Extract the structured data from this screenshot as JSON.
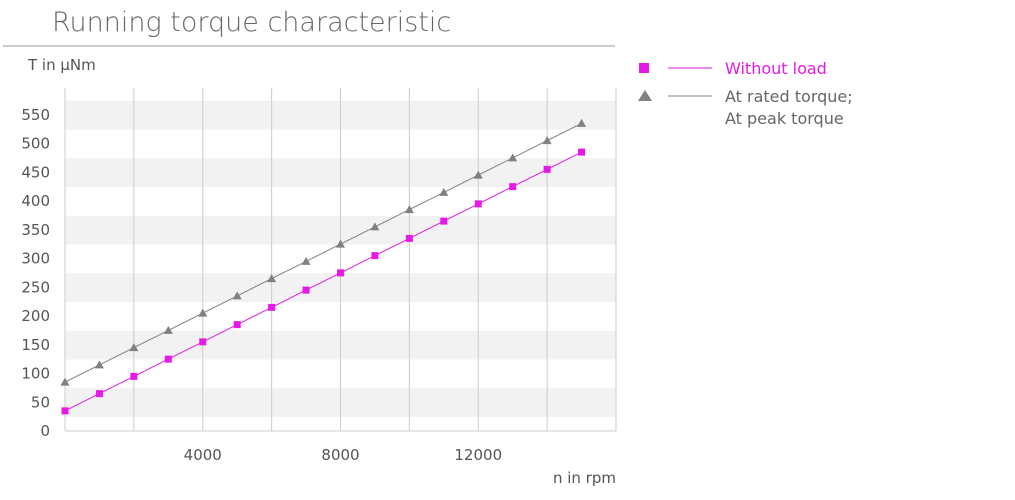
{
  "chart_data": {
    "type": "line",
    "title": "Running torque characteristic",
    "ylabel": "T in µNm",
    "xlabel": "n in rpm",
    "xlim": [
      0,
      16000
    ],
    "ylim": [
      0,
      550
    ],
    "x_ticks": [
      4000,
      8000,
      12000
    ],
    "y_ticks": [
      0,
      50,
      100,
      150,
      200,
      250,
      300,
      350,
      400,
      450,
      500,
      550
    ],
    "grid": "vertical lines and alternating horizontal bands",
    "legend_position": "right",
    "series": [
      {
        "name": "Without load",
        "color": "#e619e6",
        "marker": "square",
        "x": [
          0,
          1000,
          2000,
          3000,
          4000,
          5000,
          6000,
          7000,
          8000,
          9000,
          10000,
          11000,
          12000,
          13000,
          14000,
          15000
        ],
        "y": [
          35,
          65,
          95,
          125,
          155,
          185,
          215,
          245,
          275,
          305,
          335,
          365,
          395,
          425,
          455,
          485
        ]
      },
      {
        "name": [
          "At rated torque;",
          "At peak torque"
        ],
        "color": "#808080",
        "marker": "triangle",
        "x": [
          0,
          1000,
          2000,
          3000,
          4000,
          5000,
          6000,
          7000,
          8000,
          9000,
          10000,
          11000,
          12000,
          13000,
          14000,
          15000
        ],
        "y": [
          85,
          115,
          145,
          175,
          205,
          235,
          265,
          295,
          325,
          355,
          385,
          415,
          445,
          475,
          505,
          535
        ]
      }
    ]
  }
}
